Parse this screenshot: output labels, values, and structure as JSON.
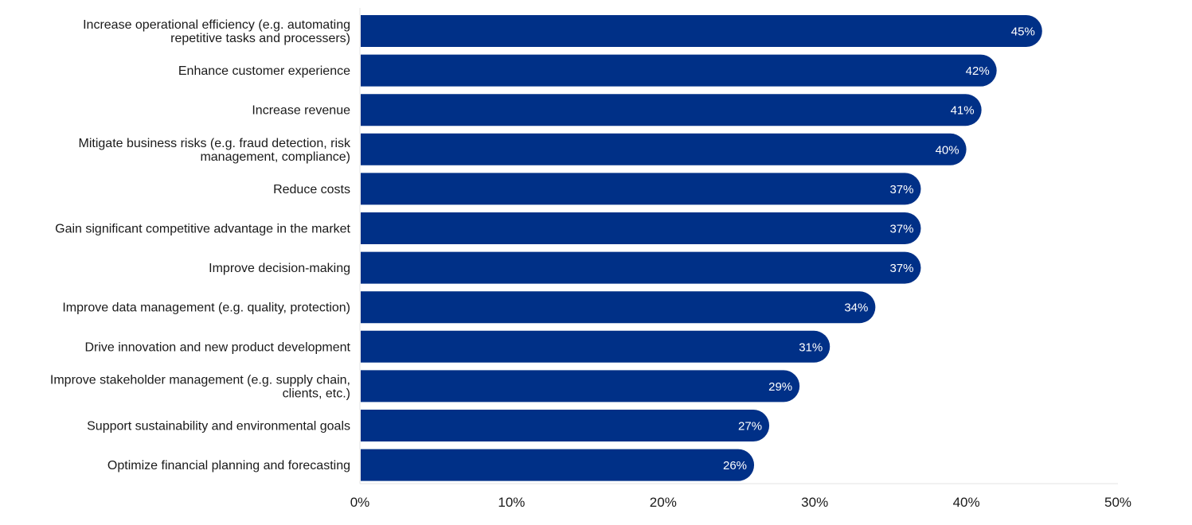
{
  "chart_data": {
    "type": "bar",
    "orientation": "horizontal",
    "title": "",
    "xlabel": "",
    "ylabel": "",
    "xlim": [
      0,
      50
    ],
    "x_ticks": [
      0,
      10,
      20,
      30,
      40,
      50
    ],
    "x_tick_labels": [
      "0%",
      "10%",
      "20%",
      "30%",
      "40%",
      "50%"
    ],
    "grid": false,
    "categories": [
      [
        "Increase operational efficiency (e.g. automating",
        "repetitive tasks and processers)"
      ],
      [
        "Enhance customer experience"
      ],
      [
        "Increase revenue"
      ],
      [
        "Mitigate business risks (e.g. fraud detection, risk",
        "management, compliance)"
      ],
      [
        "Reduce costs"
      ],
      [
        "Gain significant competitive advantage in the market"
      ],
      [
        "Improve decision-making"
      ],
      [
        "Improve data management (e.g. quality, protection)"
      ],
      [
        "Drive innovation and new product development"
      ],
      [
        "Improve stakeholder management (e.g. supply chain,",
        "clients, etc.)"
      ],
      [
        "Support sustainability and environmental goals"
      ],
      [
        "Optimize financial planning and forecasting"
      ]
    ],
    "values": [
      45,
      42,
      41,
      40,
      37,
      37,
      37,
      34,
      31,
      29,
      27,
      26
    ],
    "value_labels": [
      "45%",
      "42%",
      "41%",
      "40%",
      "37%",
      "37%",
      "37%",
      "34%",
      "31%",
      "29%",
      "27%",
      "26%"
    ],
    "bar_color": "#003087",
    "axis_color": "#e3e3e3"
  }
}
